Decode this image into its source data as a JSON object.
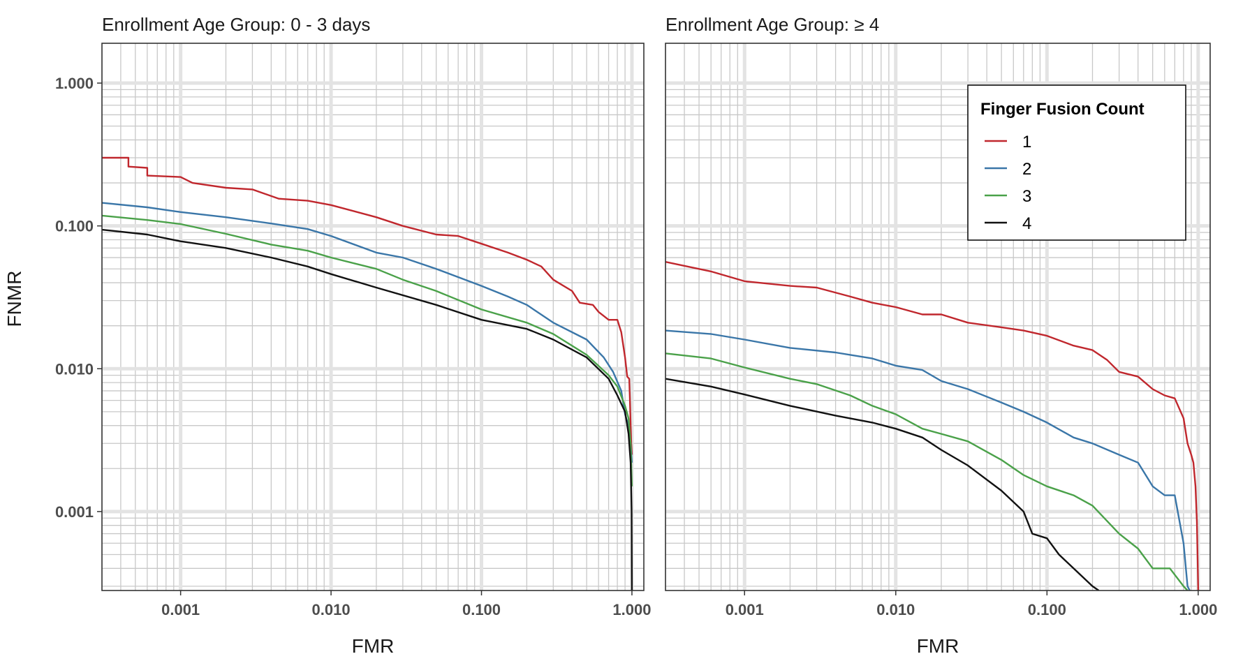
{
  "chart_data": {
    "type": "line",
    "xlabel": "FMR",
    "ylabel": "FNMR",
    "x_scale": "log",
    "y_scale": "log",
    "xlim": [
      0.0003,
      1.2
    ],
    "ylim": [
      0.00028,
      1.9
    ],
    "x_ticks": [
      "0.001",
      "0.010",
      "0.100",
      "1.000"
    ],
    "y_ticks": [
      "0.001",
      "0.010",
      "0.100",
      "1.000"
    ],
    "grid": true,
    "legend": {
      "title": "Finger Fusion Count",
      "placement": "top-right",
      "entries": [
        "1",
        "2",
        "3",
        "4"
      ]
    },
    "colors": {
      "1": "#c0272d",
      "2": "#3a76a8",
      "3": "#4aa149",
      "4": "#111111"
    },
    "panels": [
      {
        "title": "Enrollment Age Group: 0 - 3 days",
        "series": [
          {
            "name": "1",
            "points": [
              [
                0.0003,
                0.3
              ],
              [
                0.00045,
                0.3
              ],
              [
                0.00045,
                0.26
              ],
              [
                0.0006,
                0.255
              ],
              [
                0.0006,
                0.225
              ],
              [
                0.001,
                0.22
              ],
              [
                0.0012,
                0.2
              ],
              [
                0.002,
                0.185
              ],
              [
                0.003,
                0.18
              ],
              [
                0.0035,
                0.17
              ],
              [
                0.0045,
                0.155
              ],
              [
                0.007,
                0.15
              ],
              [
                0.01,
                0.14
              ],
              [
                0.02,
                0.115
              ],
              [
                0.03,
                0.1
              ],
              [
                0.05,
                0.087
              ],
              [
                0.07,
                0.085
              ],
              [
                0.1,
                0.075
              ],
              [
                0.15,
                0.065
              ],
              [
                0.2,
                0.058
              ],
              [
                0.25,
                0.052
              ],
              [
                0.3,
                0.042
              ],
              [
                0.4,
                0.035
              ],
              [
                0.45,
                0.029
              ],
              [
                0.55,
                0.028
              ],
              [
                0.6,
                0.025
              ],
              [
                0.7,
                0.022
              ],
              [
                0.8,
                0.022
              ],
              [
                0.85,
                0.018
              ],
              [
                0.9,
                0.012
              ],
              [
                0.93,
                0.0088
              ],
              [
                0.96,
                0.0085
              ],
              [
                0.97,
                0.006
              ],
              [
                0.98,
                0.004
              ],
              [
                0.99,
                0.003
              ],
              [
                1.0,
                0.0025
              ]
            ]
          },
          {
            "name": "2",
            "points": [
              [
                0.0003,
                0.145
              ],
              [
                0.0006,
                0.135
              ],
              [
                0.001,
                0.125
              ],
              [
                0.002,
                0.115
              ],
              [
                0.004,
                0.104
              ],
              [
                0.007,
                0.095
              ],
              [
                0.01,
                0.085
              ],
              [
                0.02,
                0.065
              ],
              [
                0.03,
                0.06
              ],
              [
                0.05,
                0.05
              ],
              [
                0.1,
                0.038
              ],
              [
                0.15,
                0.032
              ],
              [
                0.2,
                0.028
              ],
              [
                0.3,
                0.021
              ],
              [
                0.5,
                0.016
              ],
              [
                0.65,
                0.012
              ],
              [
                0.75,
                0.0095
              ],
              [
                0.85,
                0.007
              ],
              [
                0.9,
                0.0048
              ],
              [
                0.95,
                0.004
              ],
              [
                0.98,
                0.003
              ],
              [
                1.0,
                0.0022
              ]
            ]
          },
          {
            "name": "3",
            "points": [
              [
                0.0003,
                0.118
              ],
              [
                0.0006,
                0.11
              ],
              [
                0.001,
                0.103
              ],
              [
                0.002,
                0.088
              ],
              [
                0.004,
                0.074
              ],
              [
                0.007,
                0.067
              ],
              [
                0.01,
                0.06
              ],
              [
                0.02,
                0.05
              ],
              [
                0.03,
                0.042
              ],
              [
                0.05,
                0.035
              ],
              [
                0.1,
                0.026
              ],
              [
                0.2,
                0.021
              ],
              [
                0.3,
                0.0175
              ],
              [
                0.5,
                0.0125
              ],
              [
                0.7,
                0.009
              ],
              [
                0.8,
                0.0075
              ],
              [
                0.9,
                0.0055
              ],
              [
                0.95,
                0.0045
              ],
              [
                0.98,
                0.003
              ],
              [
                1.0,
                0.0015
              ]
            ]
          },
          {
            "name": "4",
            "points": [
              [
                0.0003,
                0.094
              ],
              [
                0.0006,
                0.087
              ],
              [
                0.001,
                0.078
              ],
              [
                0.002,
                0.07
              ],
              [
                0.004,
                0.06
              ],
              [
                0.007,
                0.052
              ],
              [
                0.01,
                0.046
              ],
              [
                0.02,
                0.037
              ],
              [
                0.05,
                0.028
              ],
              [
                0.1,
                0.022
              ],
              [
                0.2,
                0.019
              ],
              [
                0.3,
                0.016
              ],
              [
                0.5,
                0.012
              ],
              [
                0.7,
                0.0085
              ],
              [
                0.8,
                0.0065
              ],
              [
                0.9,
                0.005
              ],
              [
                0.95,
                0.0035
              ],
              [
                0.98,
                0.0022
              ],
              [
                0.995,
                0.001
              ],
              [
                1.0,
                0.00028
              ]
            ]
          }
        ]
      },
      {
        "title": "Enrollment Age Group: ≥ 4",
        "series": [
          {
            "name": "1",
            "points": [
              [
                0.0003,
                0.056
              ],
              [
                0.0006,
                0.048
              ],
              [
                0.001,
                0.041
              ],
              [
                0.002,
                0.038
              ],
              [
                0.003,
                0.037
              ],
              [
                0.005,
                0.032
              ],
              [
                0.007,
                0.029
              ],
              [
                0.01,
                0.027
              ],
              [
                0.015,
                0.024
              ],
              [
                0.02,
                0.024
              ],
              [
                0.03,
                0.021
              ],
              [
                0.05,
                0.0195
              ],
              [
                0.07,
                0.0185
              ],
              [
                0.1,
                0.017
              ],
              [
                0.15,
                0.0145
              ],
              [
                0.2,
                0.0135
              ],
              [
                0.25,
                0.0115
              ],
              [
                0.3,
                0.0095
              ],
              [
                0.4,
                0.0088
              ],
              [
                0.5,
                0.0072
              ],
              [
                0.6,
                0.0065
              ],
              [
                0.7,
                0.0062
              ],
              [
                0.8,
                0.0045
              ],
              [
                0.85,
                0.003
              ],
              [
                0.9,
                0.0025
              ],
              [
                0.93,
                0.0022
              ],
              [
                0.96,
                0.0015
              ],
              [
                0.98,
                0.00085
              ],
              [
                1.0,
                0.00028
              ]
            ]
          },
          {
            "name": "2",
            "points": [
              [
                0.0003,
                0.0185
              ],
              [
                0.0006,
                0.0175
              ],
              [
                0.001,
                0.016
              ],
              [
                0.002,
                0.014
              ],
              [
                0.004,
                0.013
              ],
              [
                0.007,
                0.0118
              ],
              [
                0.01,
                0.0105
              ],
              [
                0.015,
                0.0098
              ],
              [
                0.02,
                0.0082
              ],
              [
                0.03,
                0.0072
              ],
              [
                0.05,
                0.0058
              ],
              [
                0.07,
                0.005
              ],
              [
                0.1,
                0.0042
              ],
              [
                0.15,
                0.0033
              ],
              [
                0.2,
                0.003
              ],
              [
                0.3,
                0.0025
              ],
              [
                0.4,
                0.0022
              ],
              [
                0.5,
                0.0015
              ],
              [
                0.6,
                0.0013
              ],
              [
                0.7,
                0.0013
              ],
              [
                0.8,
                0.0006
              ],
              [
                0.85,
                0.0003
              ],
              [
                0.88,
                0.00028
              ]
            ]
          },
          {
            "name": "3",
            "points": [
              [
                0.0003,
                0.0128
              ],
              [
                0.0006,
                0.0118
              ],
              [
                0.001,
                0.0102
              ],
              [
                0.002,
                0.0085
              ],
              [
                0.003,
                0.0078
              ],
              [
                0.005,
                0.0065
              ],
              [
                0.007,
                0.0055
              ],
              [
                0.01,
                0.0048
              ],
              [
                0.015,
                0.0038
              ],
              [
                0.02,
                0.0035
              ],
              [
                0.03,
                0.0031
              ],
              [
                0.05,
                0.0023
              ],
              [
                0.07,
                0.0018
              ],
              [
                0.1,
                0.0015
              ],
              [
                0.15,
                0.0013
              ],
              [
                0.2,
                0.0011
              ],
              [
                0.3,
                0.0007
              ],
              [
                0.4,
                0.00055
              ],
              [
                0.5,
                0.0004
              ],
              [
                0.65,
                0.0004
              ],
              [
                0.8,
                0.0003
              ],
              [
                0.85,
                0.00028
              ]
            ]
          },
          {
            "name": "4",
            "points": [
              [
                0.0003,
                0.0085
              ],
              [
                0.0006,
                0.0075
              ],
              [
                0.001,
                0.0066
              ],
              [
                0.002,
                0.0055
              ],
              [
                0.004,
                0.0047
              ],
              [
                0.007,
                0.0042
              ],
              [
                0.01,
                0.0038
              ],
              [
                0.015,
                0.0033
              ],
              [
                0.02,
                0.0027
              ],
              [
                0.03,
                0.0021
              ],
              [
                0.05,
                0.0014
              ],
              [
                0.07,
                0.001
              ],
              [
                0.08,
                0.0007
              ],
              [
                0.1,
                0.00065
              ],
              [
                0.12,
                0.0005
              ],
              [
                0.15,
                0.0004
              ],
              [
                0.2,
                0.0003
              ],
              [
                0.22,
                0.00028
              ]
            ]
          }
        ]
      }
    ]
  }
}
